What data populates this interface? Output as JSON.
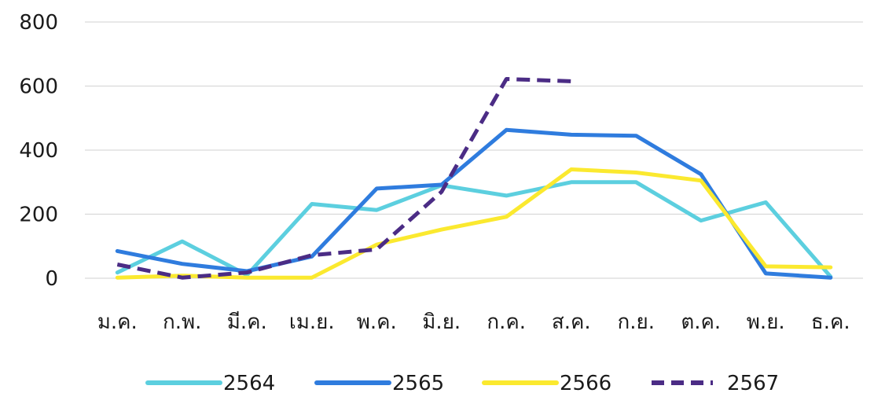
{
  "chart_data": {
    "type": "line",
    "title": "",
    "xlabel": "",
    "ylabel": "",
    "categories": [
      "ม.ค.",
      "ก.พ.",
      "มี.ค.",
      "เม.ย.",
      "พ.ค.",
      "มิ.ย.",
      "ก.ค.",
      "ส.ค.",
      "ก.ย.",
      "ต.ค.",
      "พ.ย.",
      "ธ.ค."
    ],
    "ylim": [
      0,
      800
    ],
    "yticks": [
      0,
      200,
      400,
      600,
      800
    ],
    "grid": true,
    "legend_position": "bottom",
    "series": [
      {
        "name": "2564",
        "color": "#5ccfdf",
        "dashed": false,
        "values": [
          18,
          115,
          10,
          232,
          213,
          290,
          258,
          300,
          300,
          180,
          237,
          5
        ]
      },
      {
        "name": "2565",
        "color": "#2f7cde",
        "dashed": false,
        "values": [
          85,
          45,
          22,
          68,
          280,
          292,
          463,
          448,
          445,
          325,
          15,
          2
        ]
      },
      {
        "name": "2566",
        "color": "#fbe92f",
        "dashed": false,
        "values": [
          2,
          8,
          2,
          2,
          105,
          152,
          192,
          340,
          330,
          305,
          37,
          34
        ]
      },
      {
        "name": "2567",
        "color": "#4b2c85",
        "dashed": true,
        "values": [
          43,
          2,
          18,
          72,
          90,
          270,
          622,
          615,
          null,
          null,
          null,
          null
        ]
      }
    ]
  }
}
